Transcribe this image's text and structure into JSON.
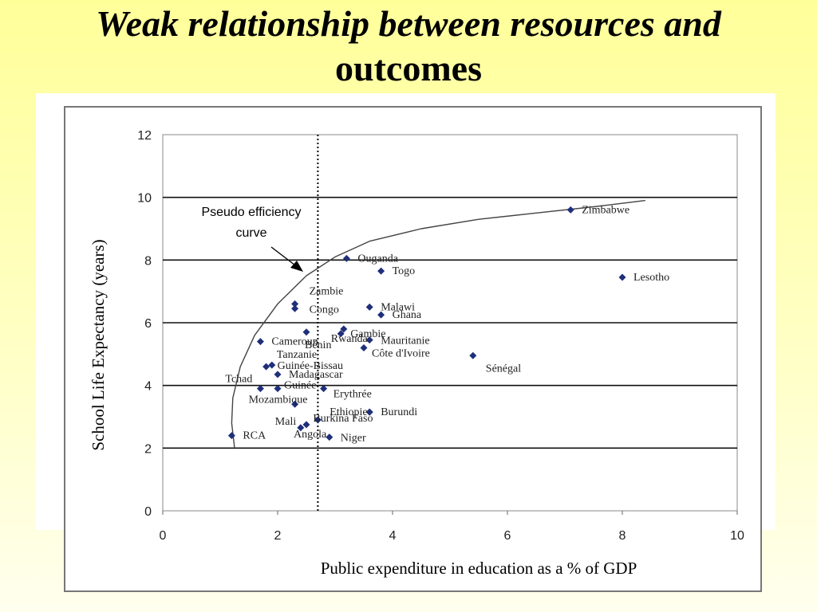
{
  "slide": {
    "title_line_1": "Weak relationship between resources and",
    "title_line_2": "outcomes"
  },
  "chart_data": {
    "type": "scatter",
    "xlabel": "Public expenditure in education as a % of GDP",
    "ylabel": "School Life Expectancy (years)",
    "xlim": [
      0,
      10
    ],
    "ylim": [
      0,
      12
    ],
    "x_ticks": [
      "0",
      "2",
      "4",
      "6",
      "8",
      "10"
    ],
    "y_ticks": [
      "0",
      "2",
      "4",
      "6",
      "8",
      "10",
      "12"
    ],
    "grid": "horizontal",
    "marker_color": "#1f2f7a",
    "reference_line": {
      "x": 2.7,
      "style": "dotted"
    },
    "annotation": {
      "line_1": "Pseudo efficiency",
      "line_2": "curve"
    },
    "curve": {
      "x": [
        1.25,
        1.2,
        1.22,
        1.35,
        1.6,
        2.0,
        2.5,
        3.0,
        3.6,
        4.5,
        5.5,
        6.5,
        7.5,
        8.4
      ],
      "y": [
        2.0,
        2.8,
        3.6,
        4.6,
        5.6,
        6.6,
        7.5,
        8.1,
        8.6,
        9.0,
        9.3,
        9.5,
        9.7,
        9.9
      ]
    },
    "points": [
      {
        "label": "Zimbabwe",
        "x": 7.1,
        "y": 9.6
      },
      {
        "label": "Lesotho",
        "x": 8.0,
        "y": 7.45
      },
      {
        "label": "Ouganda",
        "x": 3.2,
        "y": 8.05
      },
      {
        "label": "Togo",
        "x": 3.8,
        "y": 7.65
      },
      {
        "label": "Zambie",
        "x": 2.3,
        "y": 6.6
      },
      {
        "label": "Congo",
        "x": 2.3,
        "y": 6.45
      },
      {
        "label": "Malawi",
        "x": 3.6,
        "y": 6.5
      },
      {
        "label": "Bénin",
        "x": 2.5,
        "y": 5.7
      },
      {
        "label": "Rwanda",
        "x": 3.15,
        "y": 5.8
      },
      {
        "label": "Ghana",
        "x": 3.8,
        "y": 6.25
      },
      {
        "label": "Gambie",
        "x": 3.1,
        "y": 5.65
      },
      {
        "label": "Cameroun",
        "x": 1.7,
        "y": 5.4
      },
      {
        "label": "Mauritanie",
        "x": 3.6,
        "y": 5.45
      },
      {
        "label": "Côte d'Ivoire",
        "x": 3.5,
        "y": 5.2
      },
      {
        "label": "Sénégal",
        "x": 5.4,
        "y": 4.95
      },
      {
        "label": "Tanzanie",
        "x": 1.9,
        "y": 4.65
      },
      {
        "label": "Guinée-Bissau",
        "x": 1.8,
        "y": 4.6
      },
      {
        "label": "Madagascar",
        "x": 2.0,
        "y": 4.35
      },
      {
        "label": "Tchad",
        "x": 1.7,
        "y": 3.9
      },
      {
        "label": "Guinée",
        "x": 2.0,
        "y": 3.9
      },
      {
        "label": "Erythrée",
        "x": 2.8,
        "y": 3.9
      },
      {
        "label": "Mozambique",
        "x": 2.3,
        "y": 3.4
      },
      {
        "label": "Ethiopie",
        "x": 3.6,
        "y": 3.15
      },
      {
        "label": "Burundi",
        "x": 3.6,
        "y": 3.15
      },
      {
        "label": "Mali",
        "x": 2.4,
        "y": 2.65
      },
      {
        "label": "Burkina Faso",
        "x": 2.7,
        "y": 2.9
      },
      {
        "label": "Angola",
        "x": 2.5,
        "y": 2.75
      },
      {
        "label": "Niger",
        "x": 2.9,
        "y": 2.35
      },
      {
        "label": "RCA",
        "x": 1.2,
        "y": 2.4
      }
    ]
  }
}
